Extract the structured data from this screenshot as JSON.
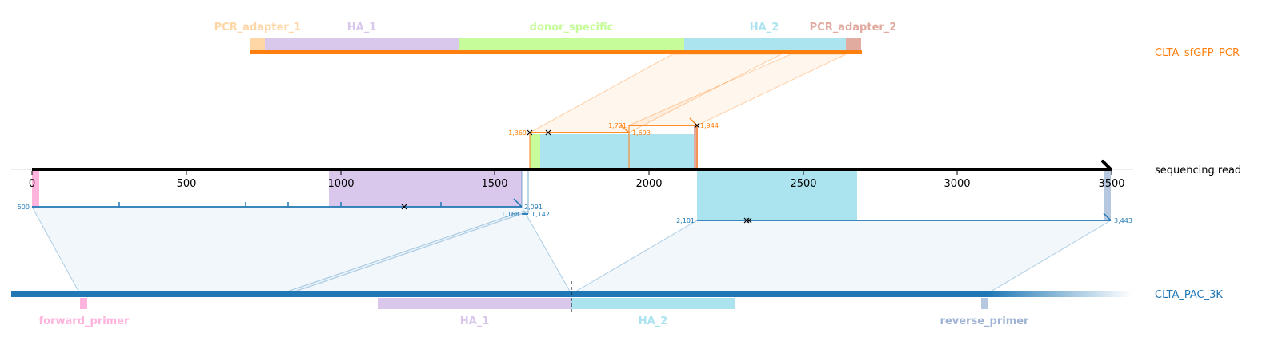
{
  "track_names": {
    "pcr": "CLTA_sfGFP_PCR",
    "read": "sequencing read",
    "ref": "CLTA_PAC_3K"
  },
  "pcr_features": [
    {
      "name": "PCR_adapter_1",
      "color": "#ffd6a5"
    },
    {
      "name": "HA_1",
      "color": "#d9c8ec"
    },
    {
      "name": "donor_specific",
      "color": "#c6fc9a"
    },
    {
      "name": "HA_2",
      "color": "#abe4ee"
    },
    {
      "name": "PCR_adapter_2",
      "color": "#e2aba0"
    }
  ],
  "ref_features": [
    {
      "name": "forward_primer",
      "color": "#ffb3dd"
    },
    {
      "name": "HA_1",
      "color": "#d9c8ec"
    },
    {
      "name": "HA_2",
      "color": "#abe4ee"
    },
    {
      "name": "reverse_primer",
      "color": "#b6c7e0"
    }
  ],
  "read_axis": {
    "ticks": [
      "0",
      "500",
      "1000",
      "1500",
      "2000",
      "2500",
      "3000",
      "3500"
    ]
  },
  "alignment_labels": {
    "pcr_a_start": "1,369",
    "pcr_a_end": "1,693",
    "pcr_b_start": "1,721",
    "pcr_b_end": "1,944",
    "ref_a_start": "500",
    "ref_a_end": "2,091",
    "ref_b_start": "1,168",
    "ref_b_end": "1,142",
    "ref_c_start": "2,101",
    "ref_c_end": "3,443"
  },
  "colors": {
    "pcr_track": "#ff7f0e",
    "ref_track": "#1f77b4",
    "read_axis": "#000000",
    "pcr_label": "#ff7f0e",
    "ref_label": "#1f77b4"
  }
}
